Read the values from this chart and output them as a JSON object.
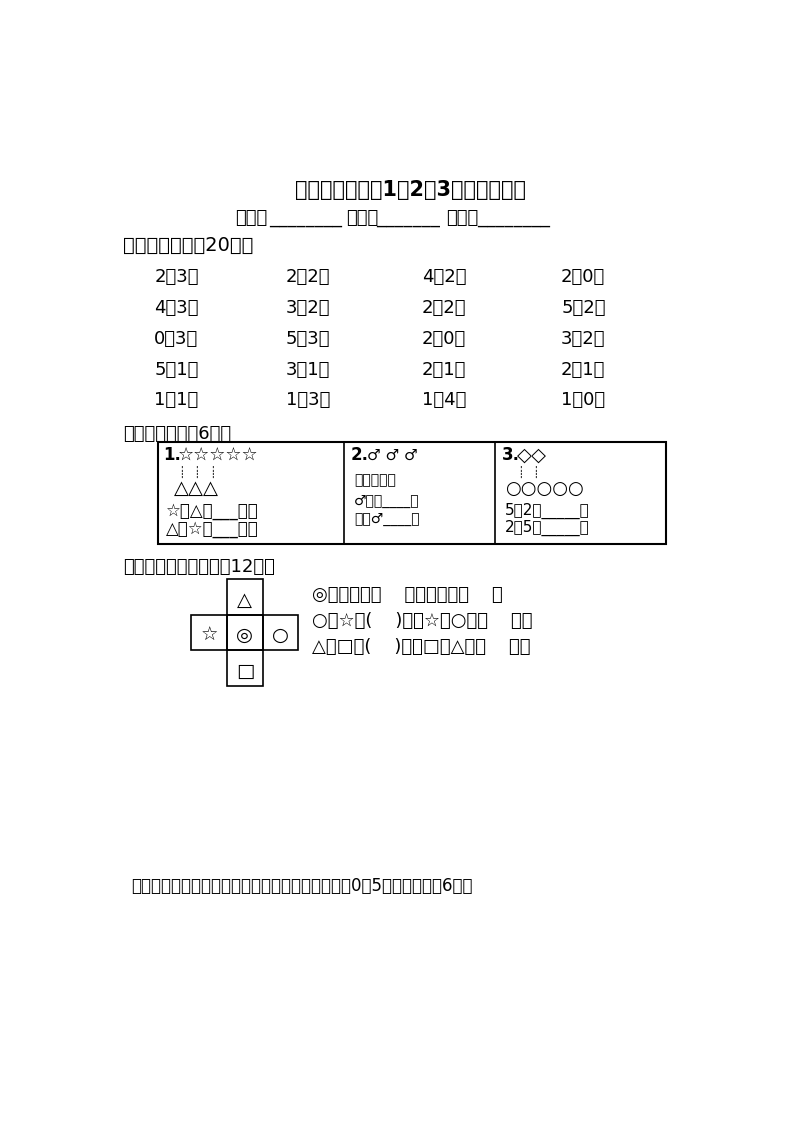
{
  "title": "一年级上册数学1、2、3单元检测试题",
  "subtitle_label1": "班别：",
  "subtitle_line1": "________",
  "subtitle_label2": "姓名：",
  "subtitle_line2": "_______",
  "subtitle_label3": "成绩：",
  "subtitle_line3": "________",
  "s1_header": "一、我会算。（20分）",
  "s1_problems": [
    [
      "2＋3＝",
      "2－2＝",
      "4－2＝",
      "2＋0＝"
    ],
    [
      "4－3＝",
      "3＋2＝",
      "2＋2＝",
      "5－2＝"
    ],
    [
      "0＋3＝",
      "5－3＝",
      "2－0＝",
      "3－2＝"
    ],
    [
      "5－1＝",
      "3＋1＝",
      "2－1＝",
      "2＋1＝"
    ],
    [
      "1＋1＝",
      "1＋3＝",
      "1＋4＝",
      "1－0＝"
    ]
  ],
  "s2_header": "二、比一比。（6分）",
  "s3_header": "三、按要求填一填。（12分）",
  "s3_line1": "◎的上面是（    ），下面是（    ）",
  "s3_line2": "○在☆的(    )面，☆在○的（    ）面",
  "s3_line3": "△在□的(    )面，□在△的（    ）面",
  "s4_header": "四、我写得最漂亮。请你按顺序在下面格子里写上0－5六个数字。（6分）",
  "box1_l1": "☆比△多___个。",
  "box1_l2": "△比☆少___个。",
  "box3_l1": "5比2多_____。",
  "box3_l2": "2比5少_____。",
  "bg": "#ffffff"
}
